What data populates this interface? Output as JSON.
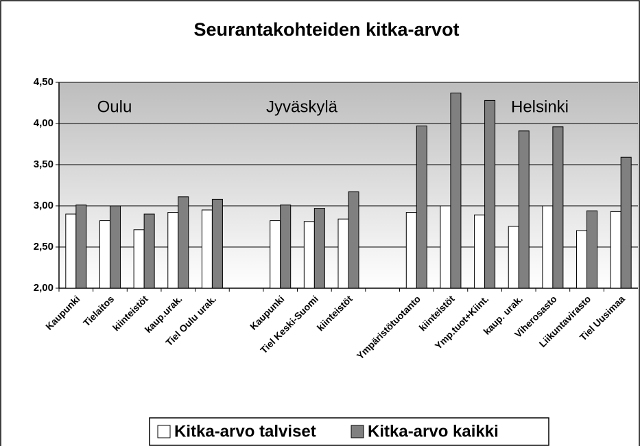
{
  "chart_data": {
    "type": "bar",
    "title": "Seurantakohteiden kitka-arvot",
    "annotations": [
      "Oulu",
      "Jyväskylä",
      "Helsinki"
    ],
    "categories": [
      "Kaupunki",
      "Tielaitos",
      "kiinteistöt",
      "kaup.urak.",
      "Tiel Oulu urak.",
      null,
      "Kaupunki",
      "Tiel Keski-Suomi",
      "kiinteistöt",
      null,
      "Ympäristötuotanto",
      "kiinteistöt",
      "Ymp.tuot+Kiint.",
      "kaup. urak.",
      "Viherosasto",
      "Liikuntavirasto",
      "Tiel Uusimaa"
    ],
    "series": [
      {
        "name": "Kitka-arvo talviset",
        "color": "#ffffff",
        "values": [
          2.9,
          2.82,
          2.71,
          2.92,
          2.95,
          null,
          2.82,
          2.81,
          2.84,
          null,
          2.92,
          3.0,
          2.89,
          2.75,
          3.0,
          2.7,
          2.93
        ]
      },
      {
        "name": "Kitka-arvo kaikki",
        "color": "#808080",
        "values": [
          3.01,
          3.0,
          2.9,
          3.11,
          3.08,
          null,
          3.01,
          2.97,
          3.17,
          null,
          3.97,
          4.37,
          4.28,
          3.91,
          3.96,
          2.94,
          3.59
        ]
      }
    ],
    "ylim": [
      2,
      4.5
    ],
    "yticks": [
      {
        "value": 2,
        "label": "2,00"
      },
      {
        "value": 2.5,
        "label": "2,50"
      },
      {
        "value": 3,
        "label": "3,00"
      },
      {
        "value": 3.5,
        "label": "3,50"
      },
      {
        "value": 4,
        "label": "4,00"
      },
      {
        "value": 4.5,
        "label": "4,50"
      }
    ],
    "grid": true,
    "legend": "bottom"
  }
}
